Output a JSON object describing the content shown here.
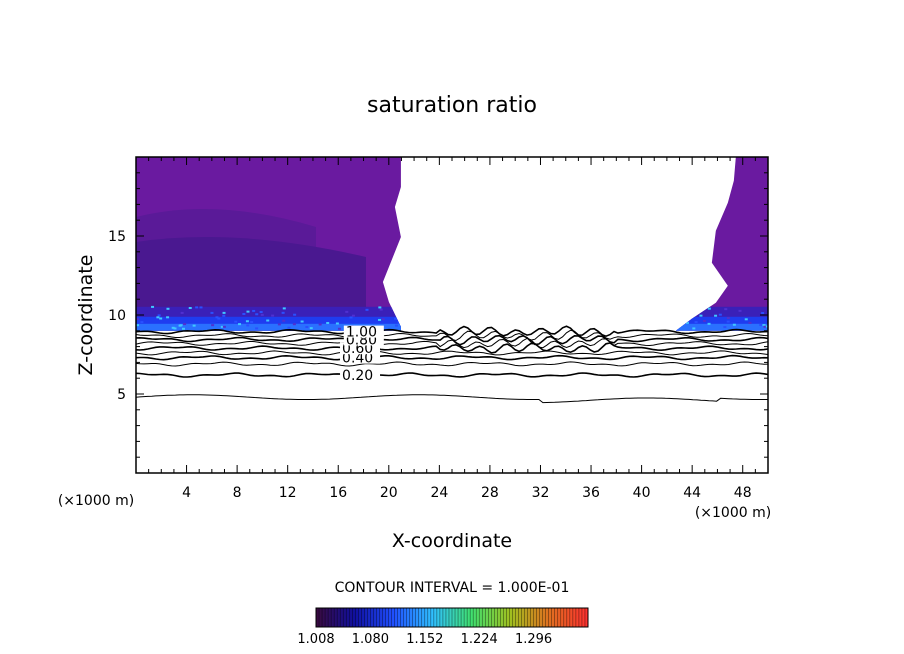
{
  "chart_data": {
    "type": "contour",
    "title": "saturation ratio",
    "xlabel": "X-coordinate",
    "ylabel": "Z-coordinate",
    "x_unit": "(×1000 m)",
    "z_unit": "(×1000 m)",
    "xlim": [
      0,
      50
    ],
    "ylim": [
      0,
      20
    ],
    "x_ticks": [
      4,
      8,
      12,
      16,
      20,
      24,
      28,
      32,
      36,
      40,
      44,
      48
    ],
    "y_ticks": [
      5,
      10,
      15
    ],
    "contour_interval_label": "CONTOUR INTERVAL = 1.000E-01",
    "contour_levels": [
      {
        "value": 0.1,
        "z": 4.8
      },
      {
        "value": 0.2,
        "z": 6.2
      },
      {
        "value": 0.3,
        "z": 6.9
      },
      {
        "value": 0.4,
        "z": 7.3
      },
      {
        "value": 0.5,
        "z": 7.6
      },
      {
        "value": 0.6,
        "z": 7.9
      },
      {
        "value": 0.7,
        "z": 8.2
      },
      {
        "value": 0.8,
        "z": 8.45
      },
      {
        "value": 0.9,
        "z": 8.7
      },
      {
        "value": 1.0,
        "z": 8.95
      }
    ],
    "contour_labels": [
      {
        "text": "0.20",
        "value": 0.2
      },
      {
        "text": "0.40",
        "value": 0.4
      },
      {
        "text": "0.60",
        "value": 0.6
      },
      {
        "text": "0.80",
        "value": 0.8
      },
      {
        "text": "1.00",
        "value": 1.0
      }
    ],
    "shaded_regions": [
      {
        "name": "left supersaturated region",
        "x_range": [
          0,
          20.8
        ],
        "z_range": [
          9.0,
          20
        ]
      },
      {
        "name": "right supersaturated region",
        "x_range": [
          43.5,
          50
        ],
        "z_range": [
          9.0,
          20
        ]
      }
    ],
    "colorbar": {
      "min": 1.008,
      "max": 1.368,
      "tick_labels": [
        "1.008",
        "1.080",
        "1.152",
        "1.224",
        "1.296"
      ],
      "colors": [
        "#3a0a3e",
        "#1010a0",
        "#2050ff",
        "#30c0ff",
        "#40e070",
        "#a0c020",
        "#e07020",
        "#ff3030"
      ]
    }
  }
}
